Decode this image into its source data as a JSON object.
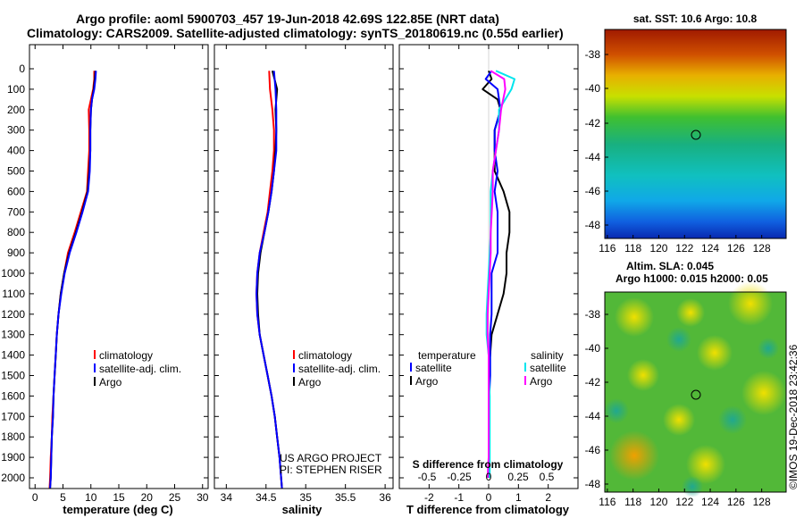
{
  "header": {
    "line1": "Argo profile: aoml 5900703_457 19-Jun-2018 42.69S 122.85E (NRT data)",
    "line2": "Climatology: CARS2009. Satellite-adjusted climatology: synTS_20180619.nc (0.55d earlier)"
  },
  "colors": {
    "climatology": "#ff0000",
    "satellite": "#0000ff",
    "argo": "#000000",
    "sal_satellite": "#00e5ee",
    "sal_argo": "#ff00ff"
  },
  "depth_ticks": [
    "0",
    "100",
    "200",
    "300",
    "400",
    "500",
    "600",
    "700",
    "800",
    "900",
    "1000",
    "1100",
    "1200",
    "1300",
    "1400",
    "1500",
    "1600",
    "1700",
    "1800",
    "1900",
    "2000"
  ],
  "chart_data": [
    {
      "type": "line",
      "name": "temperature",
      "xlabel": "temperature (deg C)",
      "ylabel": "depth",
      "xlim": [
        -1,
        31
      ],
      "ylim": [
        2060,
        -10
      ],
      "x_ticks": [
        "0",
        "5",
        "10",
        "15",
        "20",
        "25",
        "30"
      ],
      "legend": [
        "climatology",
        "satellite-adj. clim.",
        "Argo"
      ],
      "series": [
        {
          "name": "climatology",
          "depth": [
            10,
            50,
            100,
            150,
            200,
            300,
            400,
            500,
            600,
            700,
            800,
            900,
            1000,
            1100,
            1200,
            1300,
            1400,
            1500,
            1600,
            1700,
            1800,
            1900,
            2000,
            2050
          ],
          "values": [
            10.6,
            10.6,
            10.4,
            10.0,
            9.6,
            9.7,
            9.7,
            9.5,
            9.3,
            8.2,
            7.1,
            5.9,
            5.2,
            4.6,
            4.2,
            3.9,
            3.7,
            3.5,
            3.3,
            3.1,
            3.0,
            2.8,
            2.7,
            2.6
          ]
        },
        {
          "name": "satellite-adj. clim.",
          "depth": [
            10,
            50,
            100,
            150,
            200,
            300,
            400,
            500,
            600,
            700,
            800,
            900,
            1000,
            1100,
            1200,
            1300,
            1400,
            1500,
            1600,
            1700,
            1800,
            1900,
            2000,
            2050
          ],
          "values": [
            10.9,
            10.8,
            10.6,
            10.2,
            10.0,
            9.9,
            9.9,
            9.8,
            9.5,
            8.5,
            7.4,
            6.2,
            5.3,
            4.7,
            4.2,
            3.9,
            3.7,
            3.5,
            3.3,
            3.2,
            3.0,
            2.9,
            2.8,
            2.7
          ]
        },
        {
          "name": "Argo",
          "depth": [
            10,
            50,
            100,
            150,
            200,
            300,
            400,
            500,
            600,
            700,
            800,
            900,
            1000,
            1100,
            1200,
            1300,
            1400,
            1500,
            1600,
            1700,
            1800,
            1900,
            2000,
            2050
          ],
          "values": [
            10.8,
            10.7,
            10.5,
            10.2,
            10.0,
            9.9,
            9.9,
            9.7,
            9.4,
            8.4,
            7.3,
            6.1,
            5.2,
            4.6,
            4.2,
            3.9,
            3.7,
            3.5,
            3.3,
            3.2,
            3.0,
            2.9,
            2.8,
            2.7
          ]
        }
      ]
    },
    {
      "type": "line",
      "name": "salinity",
      "xlabel": "salinity",
      "ylabel": "depth",
      "xlim": [
        33.85,
        36.1
      ],
      "ylim": [
        2060,
        -10
      ],
      "x_ticks": [
        "34",
        "34.5",
        "35",
        "35.5",
        "36"
      ],
      "legend": [
        "climatology",
        "satellite-adj. clim.",
        "Argo"
      ],
      "notes": [
        "US ARGO PROJECT",
        "PI: STEPHEN RISER"
      ],
      "series": [
        {
          "name": "climatology",
          "depth": [
            10,
            100,
            200,
            300,
            400,
            500,
            600,
            700,
            800,
            900,
            1000,
            1100,
            1200,
            1300,
            1400,
            1500,
            1600,
            1700,
            1800,
            1900,
            2000,
            2050
          ],
          "values": [
            34.54,
            34.55,
            34.58,
            34.6,
            34.6,
            34.58,
            34.55,
            34.52,
            34.47,
            34.42,
            34.39,
            34.38,
            34.39,
            34.42,
            34.47,
            34.52,
            34.57,
            34.61,
            34.64,
            34.67,
            34.69,
            34.7
          ]
        },
        {
          "name": "satellite-adj. clim.",
          "depth": [
            10,
            100,
            200,
            300,
            400,
            500,
            600,
            700,
            800,
            900,
            1000,
            1100,
            1200,
            1300,
            1400,
            1500,
            1600,
            1700,
            1800,
            1900,
            2000,
            2050
          ],
          "values": [
            34.6,
            34.62,
            34.63,
            34.63,
            34.63,
            34.6,
            34.57,
            34.53,
            34.48,
            34.42,
            34.39,
            34.38,
            34.39,
            34.42,
            34.47,
            34.52,
            34.57,
            34.61,
            34.64,
            34.67,
            34.69,
            34.7
          ]
        },
        {
          "name": "Argo",
          "depth": [
            10,
            100,
            200,
            300,
            400,
            500,
            600,
            700,
            800,
            900,
            1000,
            1100,
            1200,
            1300,
            1400,
            1500,
            1600,
            1700,
            1800,
            1900,
            2000,
            2050
          ],
          "values": [
            34.58,
            34.64,
            34.62,
            34.63,
            34.62,
            34.6,
            34.57,
            34.53,
            34.48,
            34.43,
            34.4,
            34.39,
            34.4,
            34.42,
            34.47,
            34.52,
            34.57,
            34.61,
            34.64,
            34.67,
            34.69,
            34.7
          ]
        }
      ]
    },
    {
      "type": "line",
      "name": "difference",
      "xlabel": "T difference from climatology",
      "ylabel": "depth",
      "xlim": [
        -3,
        3
      ],
      "ylim": [
        2060,
        -10
      ],
      "x_ticks": [
        "-2",
        "-1",
        "0",
        "1",
        "2"
      ],
      "s_title": "S difference from climatology",
      "s_ticks": [
        "-0.5",
        "-0.25",
        "0",
        "0.25",
        "0.5"
      ],
      "legend_left": [
        "temperature",
        "satellite",
        "Argo"
      ],
      "legend_right": [
        "salinity",
        "satellite",
        "Argo"
      ],
      "series": [
        {
          "name": "temperature satellite",
          "depth": [
            10,
            50,
            100,
            200,
            300,
            400,
            500,
            600,
            700,
            800,
            900,
            1000,
            1100,
            1200,
            1300,
            1400,
            1500,
            1600,
            1700,
            1800,
            1900,
            2000
          ],
          "values": [
            0.1,
            -0.1,
            0.3,
            0.4,
            0.2,
            0.2,
            0.3,
            0.2,
            0.3,
            0.3,
            0.3,
            0.1,
            0.1,
            0.1,
            0.05,
            0.05,
            0.05,
            0.02,
            0.02,
            0.02,
            0.02,
            0.02
          ]
        },
        {
          "name": "temperature Argo",
          "depth": [
            10,
            50,
            100,
            150,
            200,
            300,
            400,
            500,
            600,
            700,
            800,
            900,
            1000,
            1100,
            1200,
            1300,
            1400,
            1500,
            1600,
            1700,
            1800,
            1900,
            2000
          ],
          "values": [
            0.0,
            0.1,
            -0.2,
            0.3,
            0.4,
            0.2,
            0.2,
            0.2,
            0.5,
            0.7,
            0.7,
            0.6,
            0.6,
            0.5,
            0.3,
            0.1,
            0.05,
            0.0,
            0.0,
            0.0,
            0.0,
            0.0,
            0.0
          ]
        },
        {
          "name": "salinity satellite",
          "depth": [
            10,
            50,
            100,
            200,
            300,
            400,
            500,
            600,
            700,
            800,
            900,
            1000,
            1100,
            1200,
            1300,
            1400,
            1500,
            1600,
            1700,
            1800,
            1900,
            2000
          ],
          "values": [
            0.07,
            0.25,
            0.22,
            0.1,
            0.1,
            0.07,
            0.04,
            0.02,
            0.02,
            0.02,
            0.01,
            0.0,
            -0.01,
            -0.02,
            -0.02,
            0.0,
            0.0,
            0.01,
            0.01,
            0.01,
            0.01,
            0.01
          ]
        },
        {
          "name": "salinity Argo",
          "depth": [
            10,
            50,
            100,
            200,
            300,
            400,
            500,
            600,
            700,
            800,
            900,
            1000,
            1100,
            1200,
            1300,
            1400,
            1500,
            1600,
            1700,
            1800,
            1900,
            2000
          ],
          "values": [
            0.02,
            0.15,
            0.16,
            0.12,
            0.1,
            0.07,
            0.04,
            0.04,
            0.03,
            0.02,
            0.02,
            0.01,
            0.0,
            -0.01,
            -0.01,
            0.0,
            0.0,
            0.0,
            0.0,
            0.0,
            0.0,
            -0.01
          ]
        }
      ]
    },
    {
      "type": "heatmap",
      "name": "sst_map",
      "title": "sat. SST: 10.6 Argo: 10.8",
      "x_ticks": [
        "116",
        "118",
        "120",
        "122",
        "124",
        "126",
        "128"
      ],
      "y_ticks": [
        "-38",
        "-40",
        "-42",
        "-44",
        "-46",
        "-48"
      ],
      "xlim": [
        115.8,
        129.9
      ],
      "ylim": [
        -48.6,
        -37.2
      ],
      "marker": [
        122.85,
        -42.69
      ]
    },
    {
      "type": "heatmap",
      "name": "sla_map",
      "title_line1": "Altim. SLA: 0.045",
      "title_line2": "Argo h1000: 0.015 h2000: 0.05",
      "x_ticks": [
        "116",
        "118",
        "120",
        "122",
        "124",
        "126",
        "128"
      ],
      "y_ticks": [
        "-38",
        "-40",
        "-42",
        "-44",
        "-46",
        "-48"
      ],
      "xlim": [
        115.8,
        129.9
      ],
      "ylim": [
        -48.6,
        -36.8
      ],
      "marker": [
        122.85,
        -42.69
      ]
    }
  ],
  "footer": {
    "stamp": "©IMOS 19-Dec-2018 23:42:36"
  }
}
